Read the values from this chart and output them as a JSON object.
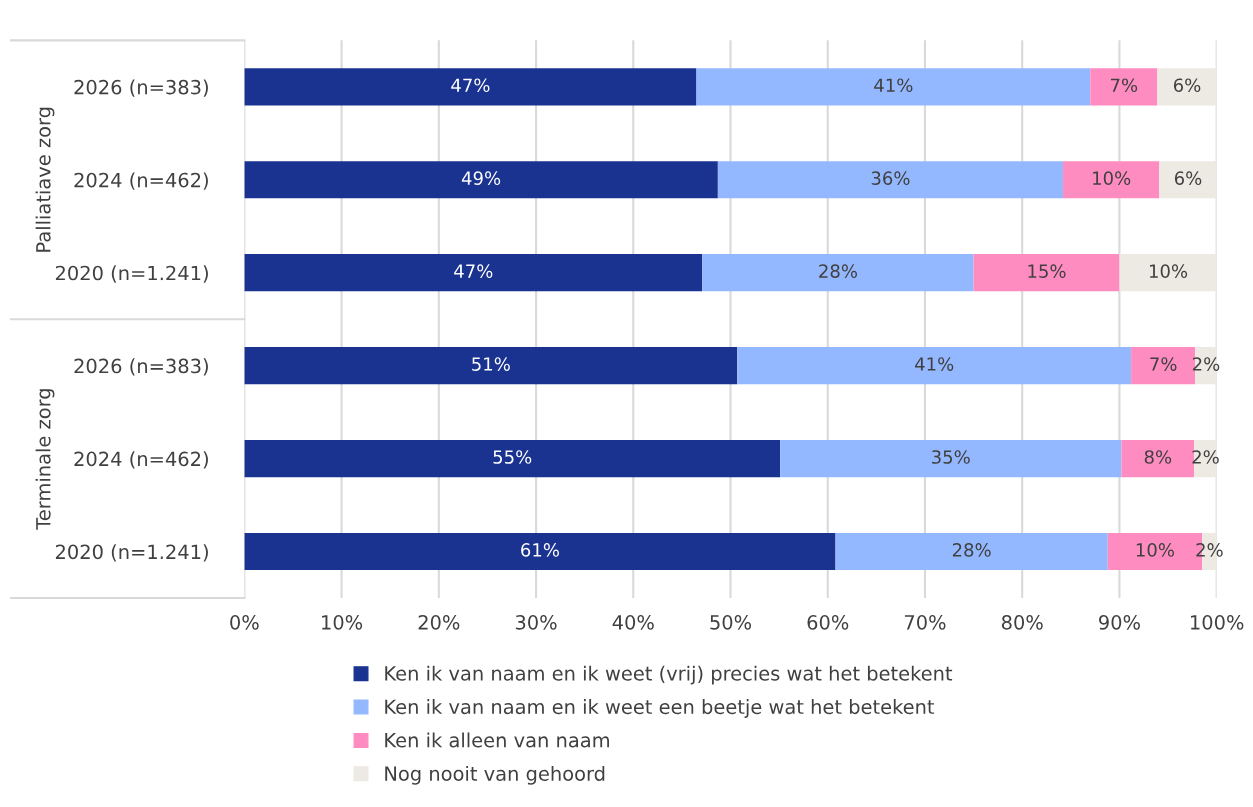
{
  "chart_data": {
    "type": "bar",
    "orientation": "horizontal",
    "stacked": true,
    "categories": [
      "2026 (n=383)",
      "2024 (n=462)",
      "2020 (n=1.241)",
      "2026 (n=383)",
      "2024 (n=462)",
      "2020 (n=1.241)"
    ],
    "series": [
      {
        "name": "Ken ik van naam en ik weet (vrij) precies wat het betekent",
        "color": "#1a3391",
        "values": [
          46.5,
          48.7,
          47.1,
          50.7,
          55.1,
          60.8
        ],
        "value_labels": [
          "47%",
          "49%",
          "47%",
          "51%",
          "55%",
          "61%"
        ]
      },
      {
        "name": "Ken ik van naam en ik weet een beetje wat het betekent",
        "color": "#94b8ff",
        "values": [
          40.5,
          35.5,
          27.9,
          40.5,
          35.1,
          28.0
        ],
        "value_labels": [
          "41%",
          "36%",
          "28%",
          "41%",
          "35%",
          "28%"
        ]
      },
      {
        "name": "Ken ik alleen van naam",
        "color": "#ff8cc0",
        "values": [
          6.9,
          9.9,
          15.0,
          6.6,
          7.5,
          9.7
        ],
        "value_labels": [
          "7%",
          "10%",
          "15%",
          "7%",
          "8%",
          "10%"
        ]
      },
      {
        "name": "Nog nooit van gehoord",
        "color": "#ede9e3",
        "values": [
          6.1,
          5.9,
          10.0,
          2.2,
          2.3,
          1.5
        ],
        "value_labels": [
          "6%",
          "6%",
          "10%",
          "2%",
          "2%",
          "2%"
        ]
      }
    ],
    "xlim": [
      0,
      100
    ],
    "xticks": [
      {
        "value": 0,
        "label": "0%"
      },
      {
        "value": 10,
        "label": "10%"
      },
      {
        "value": 20,
        "label": "20%"
      },
      {
        "value": 30,
        "label": "30%"
      },
      {
        "value": 40,
        "label": "40%"
      },
      {
        "value": 50,
        "label": "50%"
      },
      {
        "value": 60,
        "label": "60%"
      },
      {
        "value": 70,
        "label": "70%"
      },
      {
        "value": 80,
        "label": "80%"
      },
      {
        "value": 90,
        "label": "90%"
      },
      {
        "value": 100,
        "label": "100%"
      }
    ],
    "annotations": [
      "Palliatiave zorg",
      "Terminale zorg"
    ],
    "grid": "x",
    "legend": "bottom"
  }
}
